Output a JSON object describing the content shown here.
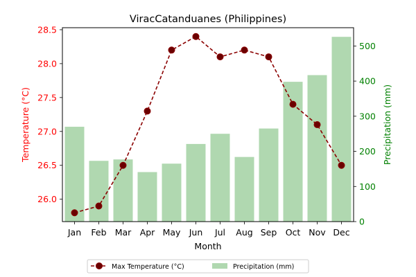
{
  "chart_data": {
    "type": "bar+line",
    "title": "ViracCatanduanes (Philippines)",
    "xlabel": "Month",
    "ylabel_left": "Temperature (°C)",
    "ylabel_right": "Precipitation (mm)",
    "categories": [
      "Jan",
      "Feb",
      "Mar",
      "Apr",
      "May",
      "Jun",
      "Jul",
      "Aug",
      "Sep",
      "Oct",
      "Nov",
      "Dec"
    ],
    "series": [
      {
        "name": "Max Temperature (°C)",
        "type": "line",
        "axis": "left",
        "color": "#8b0000",
        "values": [
          25.8,
          25.9,
          26.5,
          27.3,
          28.2,
          28.4,
          28.1,
          28.2,
          28.1,
          27.4,
          27.1,
          26.5
        ]
      },
      {
        "name": "Precipitation (mm)",
        "type": "bar",
        "axis": "right",
        "color": "#b0d8b0",
        "values": [
          270,
          173,
          177,
          141,
          165,
          221,
          250,
          184,
          265,
          398,
          417,
          526
        ]
      }
    ],
    "ylim_left": [
      25.67,
      28.53
    ],
    "ylim_right": [
      0,
      552
    ],
    "yticks_left": [
      "26.0",
      "26.5",
      "27.0",
      "27.5",
      "28.0",
      "28.5"
    ],
    "yticks_right": [
      "0",
      "100",
      "200",
      "300",
      "400",
      "500"
    ],
    "left_axis_color": "#ff0000",
    "right_axis_color": "#008000",
    "grid": false,
    "legend_position": "bottom-center"
  }
}
